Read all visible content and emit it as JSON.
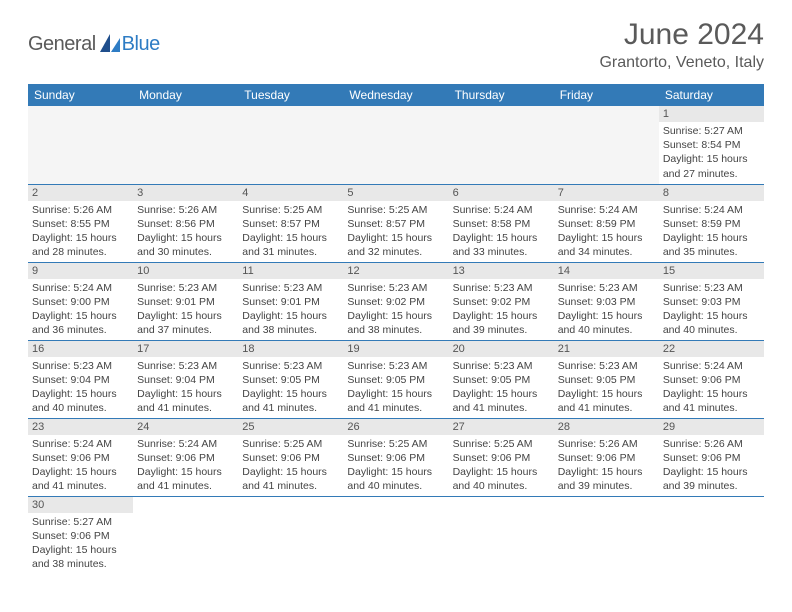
{
  "brand": {
    "general": "General",
    "blue": "Blue"
  },
  "title": "June 2024",
  "location": "Grantorto, Veneto, Italy",
  "colors": {
    "header_bg": "#337ab7",
    "header_text": "#ffffff",
    "day_num_bg": "#e8e8e8",
    "row_border": "#337ab7",
    "empty_bg": "#f5f5f5",
    "title_color": "#5a5a5a",
    "logo_blue": "#2e7cc4"
  },
  "weekdays": [
    "Sunday",
    "Monday",
    "Tuesday",
    "Wednesday",
    "Thursday",
    "Friday",
    "Saturday"
  ],
  "weeks": [
    [
      null,
      null,
      null,
      null,
      null,
      null,
      {
        "n": "1",
        "sr": "Sunrise: 5:27 AM",
        "ss": "Sunset: 8:54 PM",
        "d1": "Daylight: 15 hours",
        "d2": "and 27 minutes."
      }
    ],
    [
      {
        "n": "2",
        "sr": "Sunrise: 5:26 AM",
        "ss": "Sunset: 8:55 PM",
        "d1": "Daylight: 15 hours",
        "d2": "and 28 minutes."
      },
      {
        "n": "3",
        "sr": "Sunrise: 5:26 AM",
        "ss": "Sunset: 8:56 PM",
        "d1": "Daylight: 15 hours",
        "d2": "and 30 minutes."
      },
      {
        "n": "4",
        "sr": "Sunrise: 5:25 AM",
        "ss": "Sunset: 8:57 PM",
        "d1": "Daylight: 15 hours",
        "d2": "and 31 minutes."
      },
      {
        "n": "5",
        "sr": "Sunrise: 5:25 AM",
        "ss": "Sunset: 8:57 PM",
        "d1": "Daylight: 15 hours",
        "d2": "and 32 minutes."
      },
      {
        "n": "6",
        "sr": "Sunrise: 5:24 AM",
        "ss": "Sunset: 8:58 PM",
        "d1": "Daylight: 15 hours",
        "d2": "and 33 minutes."
      },
      {
        "n": "7",
        "sr": "Sunrise: 5:24 AM",
        "ss": "Sunset: 8:59 PM",
        "d1": "Daylight: 15 hours",
        "d2": "and 34 minutes."
      },
      {
        "n": "8",
        "sr": "Sunrise: 5:24 AM",
        "ss": "Sunset: 8:59 PM",
        "d1": "Daylight: 15 hours",
        "d2": "and 35 minutes."
      }
    ],
    [
      {
        "n": "9",
        "sr": "Sunrise: 5:24 AM",
        "ss": "Sunset: 9:00 PM",
        "d1": "Daylight: 15 hours",
        "d2": "and 36 minutes."
      },
      {
        "n": "10",
        "sr": "Sunrise: 5:23 AM",
        "ss": "Sunset: 9:01 PM",
        "d1": "Daylight: 15 hours",
        "d2": "and 37 minutes."
      },
      {
        "n": "11",
        "sr": "Sunrise: 5:23 AM",
        "ss": "Sunset: 9:01 PM",
        "d1": "Daylight: 15 hours",
        "d2": "and 38 minutes."
      },
      {
        "n": "12",
        "sr": "Sunrise: 5:23 AM",
        "ss": "Sunset: 9:02 PM",
        "d1": "Daylight: 15 hours",
        "d2": "and 38 minutes."
      },
      {
        "n": "13",
        "sr": "Sunrise: 5:23 AM",
        "ss": "Sunset: 9:02 PM",
        "d1": "Daylight: 15 hours",
        "d2": "and 39 minutes."
      },
      {
        "n": "14",
        "sr": "Sunrise: 5:23 AM",
        "ss": "Sunset: 9:03 PM",
        "d1": "Daylight: 15 hours",
        "d2": "and 40 minutes."
      },
      {
        "n": "15",
        "sr": "Sunrise: 5:23 AM",
        "ss": "Sunset: 9:03 PM",
        "d1": "Daylight: 15 hours",
        "d2": "and 40 minutes."
      }
    ],
    [
      {
        "n": "16",
        "sr": "Sunrise: 5:23 AM",
        "ss": "Sunset: 9:04 PM",
        "d1": "Daylight: 15 hours",
        "d2": "and 40 minutes."
      },
      {
        "n": "17",
        "sr": "Sunrise: 5:23 AM",
        "ss": "Sunset: 9:04 PM",
        "d1": "Daylight: 15 hours",
        "d2": "and 41 minutes."
      },
      {
        "n": "18",
        "sr": "Sunrise: 5:23 AM",
        "ss": "Sunset: 9:05 PM",
        "d1": "Daylight: 15 hours",
        "d2": "and 41 minutes."
      },
      {
        "n": "19",
        "sr": "Sunrise: 5:23 AM",
        "ss": "Sunset: 9:05 PM",
        "d1": "Daylight: 15 hours",
        "d2": "and 41 minutes."
      },
      {
        "n": "20",
        "sr": "Sunrise: 5:23 AM",
        "ss": "Sunset: 9:05 PM",
        "d1": "Daylight: 15 hours",
        "d2": "and 41 minutes."
      },
      {
        "n": "21",
        "sr": "Sunrise: 5:23 AM",
        "ss": "Sunset: 9:05 PM",
        "d1": "Daylight: 15 hours",
        "d2": "and 41 minutes."
      },
      {
        "n": "22",
        "sr": "Sunrise: 5:24 AM",
        "ss": "Sunset: 9:06 PM",
        "d1": "Daylight: 15 hours",
        "d2": "and 41 minutes."
      }
    ],
    [
      {
        "n": "23",
        "sr": "Sunrise: 5:24 AM",
        "ss": "Sunset: 9:06 PM",
        "d1": "Daylight: 15 hours",
        "d2": "and 41 minutes."
      },
      {
        "n": "24",
        "sr": "Sunrise: 5:24 AM",
        "ss": "Sunset: 9:06 PM",
        "d1": "Daylight: 15 hours",
        "d2": "and 41 minutes."
      },
      {
        "n": "25",
        "sr": "Sunrise: 5:25 AM",
        "ss": "Sunset: 9:06 PM",
        "d1": "Daylight: 15 hours",
        "d2": "and 41 minutes."
      },
      {
        "n": "26",
        "sr": "Sunrise: 5:25 AM",
        "ss": "Sunset: 9:06 PM",
        "d1": "Daylight: 15 hours",
        "d2": "and 40 minutes."
      },
      {
        "n": "27",
        "sr": "Sunrise: 5:25 AM",
        "ss": "Sunset: 9:06 PM",
        "d1": "Daylight: 15 hours",
        "d2": "and 40 minutes."
      },
      {
        "n": "28",
        "sr": "Sunrise: 5:26 AM",
        "ss": "Sunset: 9:06 PM",
        "d1": "Daylight: 15 hours",
        "d2": "and 39 minutes."
      },
      {
        "n": "29",
        "sr": "Sunrise: 5:26 AM",
        "ss": "Sunset: 9:06 PM",
        "d1": "Daylight: 15 hours",
        "d2": "and 39 minutes."
      }
    ],
    [
      {
        "n": "30",
        "sr": "Sunrise: 5:27 AM",
        "ss": "Sunset: 9:06 PM",
        "d1": "Daylight: 15 hours",
        "d2": "and 38 minutes."
      },
      null,
      null,
      null,
      null,
      null,
      null
    ]
  ]
}
